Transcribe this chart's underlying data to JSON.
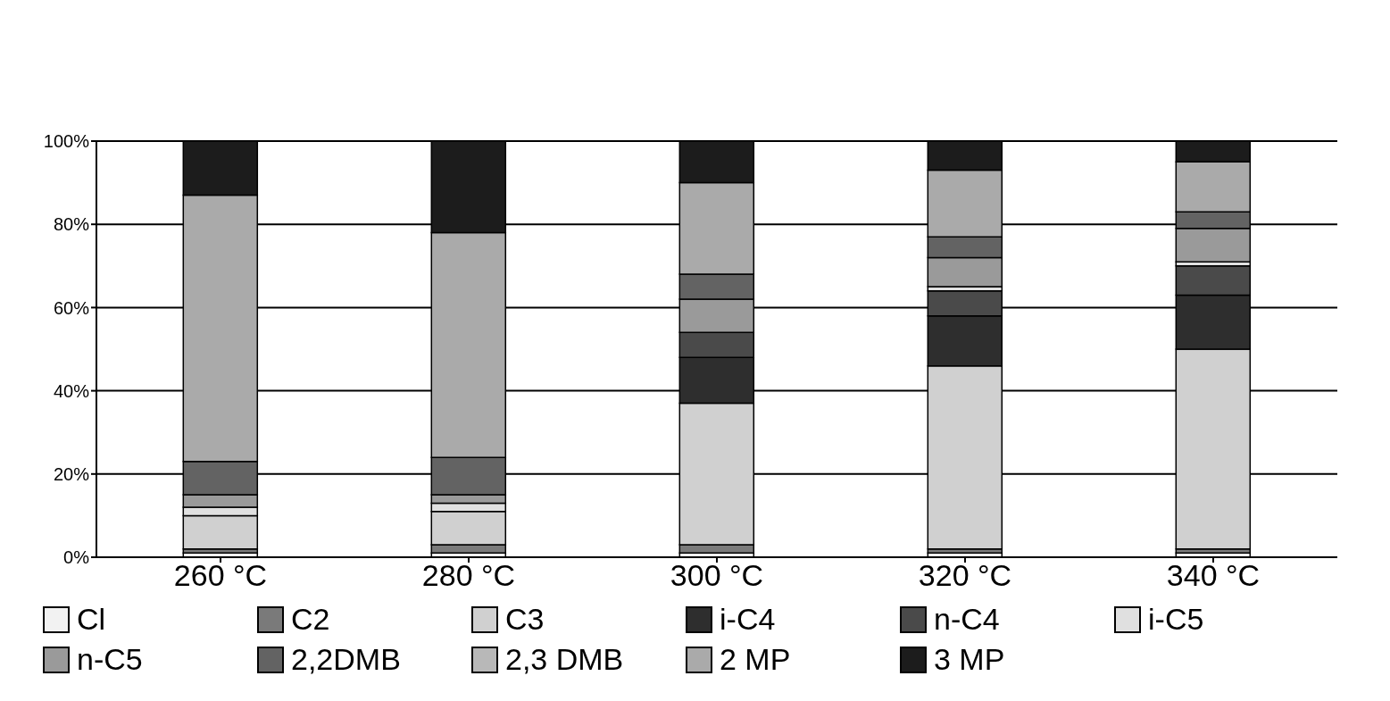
{
  "chart_data": {
    "type": "bar",
    "stacked": true,
    "categories": [
      "260 °C",
      "280 °C",
      "300 °C",
      "320 °C",
      "340 °C"
    ],
    "series": [
      {
        "name": "Cl",
        "color": "#f2f2f2",
        "values": [
          1,
          1,
          1,
          1,
          1
        ]
      },
      {
        "name": "C2",
        "color": "#7a7a7a",
        "values": [
          1,
          2,
          2,
          1,
          1
        ]
      },
      {
        "name": "C3",
        "color": "#d0d0d0",
        "values": [
          8,
          8,
          34,
          44,
          48
        ]
      },
      {
        "name": "i-C4",
        "color": "#2e2e2e",
        "values": [
          0,
          0,
          11,
          12,
          13
        ]
      },
      {
        "name": "n-C4",
        "color": "#4a4a4a",
        "values": [
          0,
          0,
          6,
          6,
          7
        ]
      },
      {
        "name": "i-C5",
        "color": "#e0e0e0",
        "values": [
          2,
          2,
          0,
          1,
          1
        ]
      },
      {
        "name": "n-C5",
        "color": "#9a9a9a",
        "values": [
          3,
          2,
          8,
          7,
          8
        ]
      },
      {
        "name": "2,2DMB",
        "color": "#636363",
        "values": [
          8,
          9,
          6,
          5,
          4
        ]
      },
      {
        "name": "2,3 DMB",
        "color": "#b8b8b8",
        "values": [
          0,
          0,
          0,
          0,
          0
        ]
      },
      {
        "name": "2 MP",
        "color": "#aaaaaa",
        "values": [
          64,
          54,
          22,
          16,
          12
        ]
      },
      {
        "name": "3 MP",
        "color": "#1c1c1c",
        "values": [
          13,
          22,
          10,
          7,
          5
        ]
      }
    ],
    "ylim": [
      0,
      100
    ],
    "yticks": [
      {
        "value": 0,
        "label": "0%"
      },
      {
        "value": 20,
        "label": "20%"
      },
      {
        "value": 40,
        "label": "40%"
      },
      {
        "value": 60,
        "label": "60%"
      },
      {
        "value": 80,
        "label": "80%"
      },
      {
        "value": 100,
        "label": "100%"
      }
    ],
    "grid": "y",
    "legend": "bottom"
  }
}
